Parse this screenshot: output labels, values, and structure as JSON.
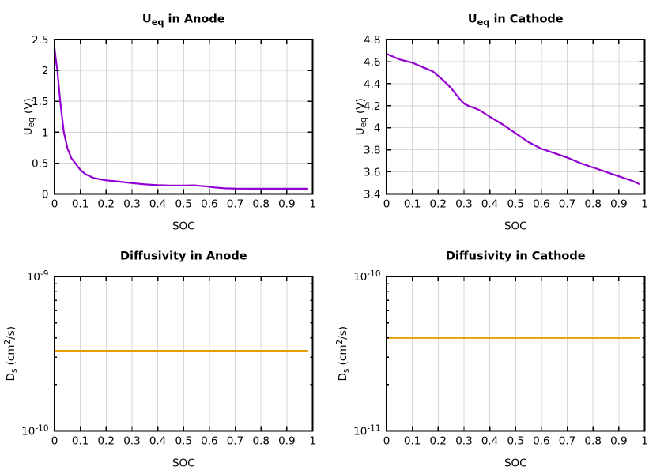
{
  "figure": {
    "background": "#ffffff",
    "colors": {
      "curve_purple": "#9400d3",
      "curve_orange": "#e69f00",
      "grid": "#d6d6d6",
      "axis": "#000000",
      "text": "#000000"
    }
  },
  "chart_data": [
    {
      "id": "ueq-anode",
      "type": "line",
      "title": "U_eq in Anode",
      "title_parts": [
        {
          "t": "U"
        },
        {
          "t": "eq",
          "sub": true
        },
        {
          "t": " in Anode"
        }
      ],
      "xlabel": "SOC",
      "ylabel": "U_eq (V)",
      "ylabel_parts": [
        {
          "t": "U"
        },
        {
          "t": "eq",
          "sub": true
        },
        {
          "t": " (V)"
        }
      ],
      "ylabel_x": 40,
      "yscale": "linear",
      "xlim": [
        0,
        1
      ],
      "ylim": [
        0,
        2.5
      ],
      "grid": true,
      "legend": "none",
      "xticks": [
        {
          "v": 0,
          "t": "0"
        },
        {
          "v": 0.1,
          "t": "0.1"
        },
        {
          "v": 0.2,
          "t": "0.2"
        },
        {
          "v": 0.3,
          "t": "0.3"
        },
        {
          "v": 0.4,
          "t": "0.4"
        },
        {
          "v": 0.5,
          "t": "0.5"
        },
        {
          "v": 0.6,
          "t": "0.6"
        },
        {
          "v": 0.7,
          "t": "0.7"
        },
        {
          "v": 0.8,
          "t": "0.8"
        },
        {
          "v": 0.9,
          "t": "0.9"
        },
        {
          "v": 1,
          "t": "1"
        }
      ],
      "yticks": [
        {
          "v": 0,
          "t": "0"
        },
        {
          "v": 0.5,
          "t": "0.5"
        },
        {
          "v": 1,
          "t": "1"
        },
        {
          "v": 1.5,
          "t": "1.5"
        },
        {
          "v": 2,
          "t": "2"
        },
        {
          "v": 2.5,
          "t": "2.5"
        }
      ],
      "line_color": "#9400d3",
      "line_width": 2.2,
      "x": [
        0,
        0.005,
        0.011,
        0.022,
        0.036,
        0.05,
        0.065,
        0.08,
        0.1,
        0.12,
        0.15,
        0.18,
        0.2,
        0.25,
        0.3,
        0.35,
        0.4,
        0.45,
        0.5,
        0.54,
        0.58,
        0.62,
        0.66,
        0.7,
        0.75,
        0.8,
        0.85,
        0.9,
        0.95,
        0.98
      ],
      "y": [
        2.36,
        2.18,
        2.0,
        1.5,
        1.0,
        0.74,
        0.58,
        0.5,
        0.39,
        0.32,
        0.26,
        0.235,
        0.22,
        0.2,
        0.175,
        0.155,
        0.143,
        0.137,
        0.136,
        0.139,
        0.125,
        0.105,
        0.091,
        0.086,
        0.085,
        0.085,
        0.085,
        0.085,
        0.085,
        0.085
      ]
    },
    {
      "id": "ueq-cathode",
      "type": "line",
      "title": "U_eq in Cathode",
      "title_parts": [
        {
          "t": "U"
        },
        {
          "t": "eq",
          "sub": true
        },
        {
          "t": " in Cathode"
        }
      ],
      "xlabel": "SOC",
      "ylabel": "U_eq (V)",
      "ylabel_parts": [
        {
          "t": "U"
        },
        {
          "t": "eq",
          "sub": true
        },
        {
          "t": " (V)"
        }
      ],
      "ylabel_x": 40,
      "yscale": "linear",
      "xlim": [
        0,
        1
      ],
      "ylim": [
        3.4,
        4.8
      ],
      "grid": true,
      "legend": "none",
      "xticks": [
        {
          "v": 0,
          "t": "0"
        },
        {
          "v": 0.1,
          "t": "0.1"
        },
        {
          "v": 0.2,
          "t": "0.2"
        },
        {
          "v": 0.3,
          "t": "0.3"
        },
        {
          "v": 0.4,
          "t": "0.4"
        },
        {
          "v": 0.5,
          "t": "0.5"
        },
        {
          "v": 0.6,
          "t": "0.6"
        },
        {
          "v": 0.7,
          "t": "0.7"
        },
        {
          "v": 0.8,
          "t": "0.8"
        },
        {
          "v": 0.9,
          "t": "0.9"
        },
        {
          "v": 1,
          "t": "1"
        }
      ],
      "yticks": [
        {
          "v": 3.4,
          "t": "3.4"
        },
        {
          "v": 3.6,
          "t": "3.6"
        },
        {
          "v": 3.8,
          "t": "3.8"
        },
        {
          "v": 4,
          "t": "4"
        },
        {
          "v": 4.2,
          "t": "4.2"
        },
        {
          "v": 4.4,
          "t": "4.4"
        },
        {
          "v": 4.6,
          "t": "4.6"
        },
        {
          "v": 4.8,
          "t": "4.8"
        }
      ],
      "line_color": "#9400d3",
      "line_width": 2.2,
      "x": [
        0,
        0.05,
        0.1,
        0.15,
        0.18,
        0.2,
        0.22,
        0.25,
        0.28,
        0.3,
        0.32,
        0.34,
        0.36,
        0.4,
        0.45,
        0.5,
        0.55,
        0.6,
        0.65,
        0.7,
        0.75,
        0.8,
        0.85,
        0.9,
        0.95,
        0.98
      ],
      "y": [
        4.67,
        4.62,
        4.59,
        4.54,
        4.51,
        4.47,
        4.43,
        4.36,
        4.27,
        4.22,
        4.195,
        4.18,
        4.16,
        4.1,
        4.03,
        3.95,
        3.87,
        3.81,
        3.77,
        3.73,
        3.68,
        3.64,
        3.6,
        3.56,
        3.52,
        3.49
      ]
    },
    {
      "id": "diffusivity-anode",
      "type": "line",
      "title": "Diffusivity in Anode",
      "title_parts": [
        {
          "t": "Diffusivity in Anode"
        }
      ],
      "xlabel": "SOC",
      "ylabel": "D_s (cm^2/s)",
      "ylabel_parts": [
        {
          "t": "D"
        },
        {
          "t": "s",
          "sub": true
        },
        {
          "t": " (cm"
        },
        {
          "t": "2",
          "sup": true
        },
        {
          "t": "/s)"
        }
      ],
      "ylabel_x": 18,
      "yscale": "log",
      "xlim": [
        0,
        1
      ],
      "ylim": [
        1e-10,
        1e-09
      ],
      "grid": true,
      "legend": "none",
      "xticks": [
        {
          "v": 0,
          "t": "0"
        },
        {
          "v": 0.1,
          "t": "0.1"
        },
        {
          "v": 0.2,
          "t": "0.2"
        },
        {
          "v": 0.3,
          "t": "0.3"
        },
        {
          "v": 0.4,
          "t": "0.4"
        },
        {
          "v": 0.5,
          "t": "0.5"
        },
        {
          "v": 0.6,
          "t": "0.6"
        },
        {
          "v": 0.7,
          "t": "0.7"
        },
        {
          "v": 0.8,
          "t": "0.8"
        },
        {
          "v": 0.9,
          "t": "0.9"
        },
        {
          "v": 1,
          "t": "1"
        }
      ],
      "yticks": [
        {
          "v": 1e-10,
          "parts": [
            {
              "t": "10"
            },
            {
              "t": "-10",
              "sup": true
            }
          ]
        },
        {
          "v": 1e-09,
          "parts": [
            {
              "t": "10"
            },
            {
              "t": "-9",
              "sup": true
            }
          ]
        }
      ],
      "line_color": "#e69f00",
      "line_width": 2.2,
      "x": [
        0,
        0.98
      ],
      "y": [
        3.3e-10,
        3.3e-10
      ]
    },
    {
      "id": "diffusivity-cathode",
      "type": "line",
      "title": "Diffusivity in Cathode",
      "title_parts": [
        {
          "t": "Diffusivity in Cathode"
        }
      ],
      "xlabel": "SOC",
      "ylabel": "D_s (cm^2/s)",
      "ylabel_parts": [
        {
          "t": "D"
        },
        {
          "t": "s",
          "sub": true
        },
        {
          "t": " (cm"
        },
        {
          "t": "2",
          "sup": true
        },
        {
          "t": "/s)"
        }
      ],
      "ylabel_x": 18,
      "yscale": "log",
      "xlim": [
        0,
        1
      ],
      "ylim": [
        1e-11,
        1e-10
      ],
      "grid": true,
      "legend": "none",
      "xticks": [
        {
          "v": 0,
          "t": "0"
        },
        {
          "v": 0.1,
          "t": "0.1"
        },
        {
          "v": 0.2,
          "t": "0.2"
        },
        {
          "v": 0.3,
          "t": "0.3"
        },
        {
          "v": 0.4,
          "t": "0.4"
        },
        {
          "v": 0.5,
          "t": "0.5"
        },
        {
          "v": 0.6,
          "t": "0.6"
        },
        {
          "v": 0.7,
          "t": "0.7"
        },
        {
          "v": 0.8,
          "t": "0.8"
        },
        {
          "v": 0.9,
          "t": "0.9"
        },
        {
          "v": 1,
          "t": "1"
        }
      ],
      "yticks": [
        {
          "v": 1e-11,
          "parts": [
            {
              "t": "10"
            },
            {
              "t": "-11",
              "sup": true
            }
          ]
        },
        {
          "v": 1e-10,
          "parts": [
            {
              "t": "10"
            },
            {
              "t": "-10",
              "sup": true
            }
          ]
        }
      ],
      "line_color": "#e69f00",
      "line_width": 2.2,
      "x": [
        0,
        0.98
      ],
      "y": [
        4e-11,
        4e-11
      ]
    }
  ]
}
